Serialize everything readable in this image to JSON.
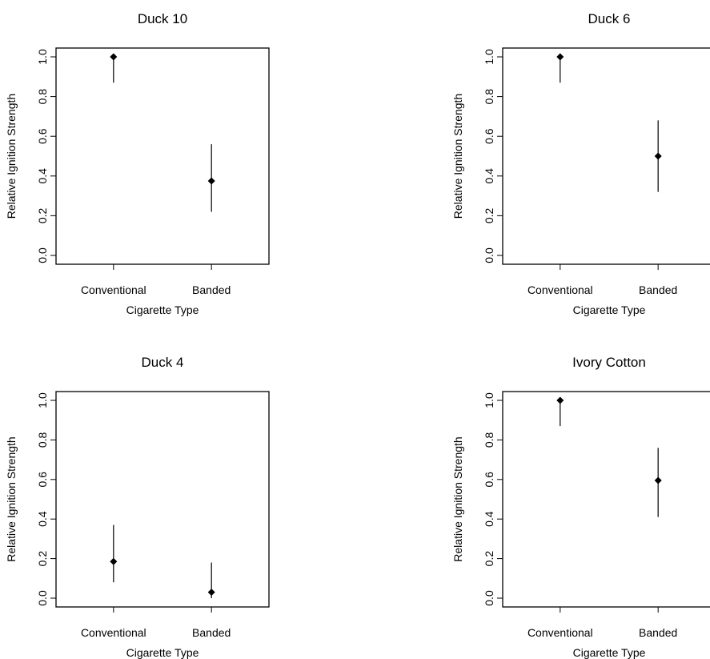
{
  "chart_data": [
    {
      "type": "scatter",
      "title": "Duck 10",
      "xlabel": "Cigarette Type",
      "ylabel": "Relative Ignition Strength",
      "categories": [
        "Conventional",
        "Banded"
      ],
      "values": [
        1.0,
        0.375
      ],
      "error_low": [
        0.87,
        0.22
      ],
      "error_high": [
        1.0,
        0.56
      ],
      "ylim": [
        0,
        1
      ],
      "yticks": [
        "0.0",
        "0.2",
        "0.4",
        "0.6",
        "0.8",
        "1.0"
      ],
      "grid": false,
      "legend": "none"
    },
    {
      "type": "scatter",
      "title": "Duck 6",
      "xlabel": "Cigarette Type",
      "ylabel": "Relative Ignition Strength",
      "categories": [
        "Conventional",
        "Banded"
      ],
      "values": [
        1.0,
        0.5
      ],
      "error_low": [
        0.87,
        0.32
      ],
      "error_high": [
        1.0,
        0.68
      ],
      "ylim": [
        0,
        1
      ],
      "yticks": [
        "0.0",
        "0.2",
        "0.4",
        "0.6",
        "0.8",
        "1.0"
      ],
      "grid": false,
      "legend": "none"
    },
    {
      "type": "scatter",
      "title": "Duck 4",
      "xlabel": "Cigarette Type",
      "ylabel": "Relative Ignition Strength",
      "categories": [
        "Conventional",
        "Banded"
      ],
      "values": [
        0.185,
        0.03
      ],
      "error_low": [
        0.08,
        0.0
      ],
      "error_high": [
        0.37,
        0.18
      ],
      "ylim": [
        0,
        1
      ],
      "yticks": [
        "0.0",
        "0.2",
        "0.4",
        "0.6",
        "0.8",
        "1.0"
      ],
      "grid": false,
      "legend": "none"
    },
    {
      "type": "scatter",
      "title": "Ivory Cotton",
      "xlabel": "Cigarette Type",
      "ylabel": "Relative Ignition Strength",
      "categories": [
        "Conventional",
        "Banded"
      ],
      "values": [
        1.0,
        0.595
      ],
      "error_low": [
        0.87,
        0.41
      ],
      "error_high": [
        1.0,
        0.76
      ],
      "ylim": [
        0,
        1
      ],
      "yticks": [
        "0.0",
        "0.2",
        "0.4",
        "0.6",
        "0.8",
        "1.0"
      ],
      "grid": false,
      "legend": "none"
    }
  ]
}
